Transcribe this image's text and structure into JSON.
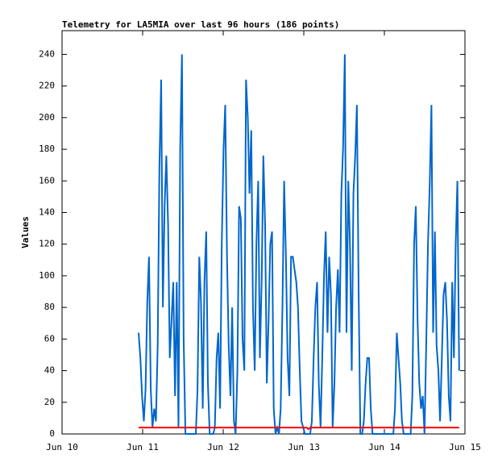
{
  "chart_data": {
    "type": "line",
    "title": "Telemetry for LA5MIA over last 96 hours (186 points)",
    "ylabel": "Values",
    "xlim": [
      0,
      5
    ],
    "ylim": [
      0,
      255
    ],
    "xticks": [
      {
        "value": 0,
        "label": "Jun 10"
      },
      {
        "value": 1,
        "label": "Jun 11"
      },
      {
        "value": 2,
        "label": "Jun 12"
      },
      {
        "value": 3,
        "label": "Jun 13"
      },
      {
        "value": 4,
        "label": "Jun 14"
      },
      {
        "value": 5,
        "label": "Jun 15"
      }
    ],
    "yticks": [
      0,
      20,
      40,
      60,
      80,
      100,
      120,
      140,
      160,
      180,
      200,
      220,
      240
    ],
    "x": [
      0.95,
      0.972,
      0.993,
      1.015,
      1.036,
      1.058,
      1.079,
      1.101,
      1.122,
      1.144,
      1.165,
      1.187,
      1.208,
      1.23,
      1.251,
      1.273,
      1.294,
      1.316,
      1.337,
      1.359,
      1.38,
      1.402,
      1.423,
      1.445,
      1.466,
      1.488,
      1.509,
      1.531,
      1.552,
      1.574,
      1.595,
      1.617,
      1.638,
      1.66,
      1.681,
      1.703,
      1.724,
      1.746,
      1.767,
      1.789,
      1.81,
      1.832,
      1.853,
      1.875,
      1.896,
      1.918,
      1.939,
      1.961,
      1.982,
      2.004,
      2.025,
      2.047,
      2.068,
      2.09,
      2.111,
      2.133,
      2.154,
      2.176,
      2.197,
      2.219,
      2.24,
      2.262,
      2.283,
      2.305,
      2.326,
      2.348,
      2.369,
      2.391,
      2.412,
      2.434,
      2.455,
      2.477,
      2.498,
      2.52,
      2.541,
      2.563,
      2.584,
      2.606,
      2.627,
      2.649,
      2.67,
      2.692,
      2.713,
      2.735,
      2.756,
      2.778,
      2.799,
      2.821,
      2.842,
      2.864,
      2.885,
      2.907,
      2.928,
      2.95,
      2.971,
      2.993,
      3.014,
      3.036,
      3.057,
      3.079,
      3.1,
      3.122,
      3.143,
      3.165,
      3.186,
      3.208,
      3.229,
      3.251,
      3.272,
      3.294,
      3.315,
      3.337,
      3.358,
      3.38,
      3.401,
      3.423,
      3.444,
      3.466,
      3.487,
      3.509,
      3.53,
      3.552,
      3.573,
      3.595,
      3.616,
      3.638,
      3.659,
      3.681,
      3.702,
      3.724,
      3.745,
      3.767,
      3.788,
      3.81,
      3.831,
      3.853,
      3.874,
      3.896,
      3.917,
      3.939,
      3.96,
      3.982,
      4.003,
      4.025,
      4.046,
      4.068,
      4.089,
      4.111,
      4.132,
      4.154,
      4.175,
      4.197,
      4.218,
      4.24,
      4.261,
      4.283,
      4.304,
      4.326,
      4.347,
      4.369,
      4.39,
      4.412,
      4.433,
      4.455,
      4.476,
      4.498,
      4.519,
      4.541,
      4.562,
      4.584,
      4.605,
      4.627,
      4.648,
      4.67,
      4.691,
      4.713,
      4.734,
      4.756,
      4.777,
      4.799,
      4.82,
      4.842,
      4.863,
      4.885,
      4.906,
      4.928
    ],
    "series": [
      {
        "color": "#0066cc",
        "values": [
          64,
          48,
          24,
          8,
          28,
          84,
          112,
          28,
          4,
          16,
          8,
          56,
          168,
          224,
          80,
          144,
          176,
          132,
          48,
          72,
          96,
          24,
          96,
          4,
          180,
          240,
          60,
          0,
          0,
          0,
          0,
          0,
          0,
          0,
          28,
          112,
          84,
          16,
          96,
          128,
          32,
          0,
          0,
          0,
          4,
          48,
          64,
          16,
          120,
          180,
          208,
          112,
          56,
          24,
          80,
          8,
          0,
          40,
          144,
          136,
          60,
          40,
          224,
          200,
          152,
          192,
          80,
          40,
          120,
          160,
          48,
          96,
          176,
          132,
          32,
          72,
          120,
          128,
          16,
          0,
          4,
          0,
          16,
          80,
          160,
          112,
          48,
          24,
          112,
          112,
          104,
          96,
          80,
          40,
          8,
          4,
          0,
          0,
          0,
          0,
          8,
          48,
          80,
          96,
          32,
          4,
          48,
          100,
          128,
          64,
          112,
          88,
          4,
          32,
          80,
          104,
          64,
          152,
          180,
          240,
          64,
          160,
          120,
          40,
          152,
          176,
          208,
          88,
          0,
          0,
          8,
          32,
          48,
          48,
          16,
          0,
          0,
          0,
          0,
          0,
          0,
          0,
          0,
          0,
          0,
          0,
          0,
          0,
          16,
          64,
          48,
          32,
          8,
          0,
          0,
          0,
          0,
          0,
          24,
          120,
          144,
          72,
          32,
          16,
          24,
          0,
          56,
          120,
          156,
          208,
          64,
          128,
          56,
          40,
          8,
          48,
          88,
          96,
          72,
          24,
          8,
          96,
          48,
          120,
          160,
          40
        ]
      },
      {
        "color": "#ff0000",
        "values": [
          4,
          4,
          4,
          4,
          4,
          4,
          4,
          4,
          4,
          4,
          4,
          4,
          4,
          4,
          4,
          4,
          4,
          4,
          4,
          4,
          4,
          4,
          4,
          4,
          4,
          4,
          4,
          4,
          4,
          4,
          4,
          4,
          4,
          4,
          4,
          4,
          4,
          4,
          4,
          4,
          4,
          4,
          4,
          4,
          4,
          4,
          4,
          4,
          4,
          4,
          4,
          4,
          4,
          4,
          4,
          4,
          4,
          4,
          4,
          4,
          4,
          4,
          4,
          4,
          4,
          4,
          4,
          4,
          4,
          4,
          4,
          4,
          4,
          4,
          4,
          4,
          4,
          4,
          4,
          4,
          4,
          4,
          4,
          4,
          4,
          4,
          4,
          4,
          4,
          4,
          4,
          4,
          4,
          4,
          4,
          4,
          4,
          4,
          3,
          4,
          4,
          4,
          4,
          4,
          4,
          4,
          4,
          4,
          4,
          4,
          4,
          4,
          4,
          4,
          4,
          4,
          4,
          4,
          4,
          4,
          4,
          4,
          4,
          4,
          4,
          4,
          4,
          4,
          4,
          4,
          4,
          4,
          4,
          4,
          4,
          4,
          4,
          4,
          4,
          4,
          4,
          4,
          4,
          4,
          4,
          4,
          4,
          4,
          4,
          4,
          4,
          4,
          4,
          4,
          4,
          4,
          4,
          4,
          4,
          4,
          4,
          4,
          4,
          4,
          4,
          4,
          4,
          4,
          4,
          4,
          4,
          4,
          4,
          4,
          4,
          4,
          4,
          4,
          4,
          4,
          4,
          4,
          4,
          4,
          4,
          4
        ]
      }
    ]
  }
}
